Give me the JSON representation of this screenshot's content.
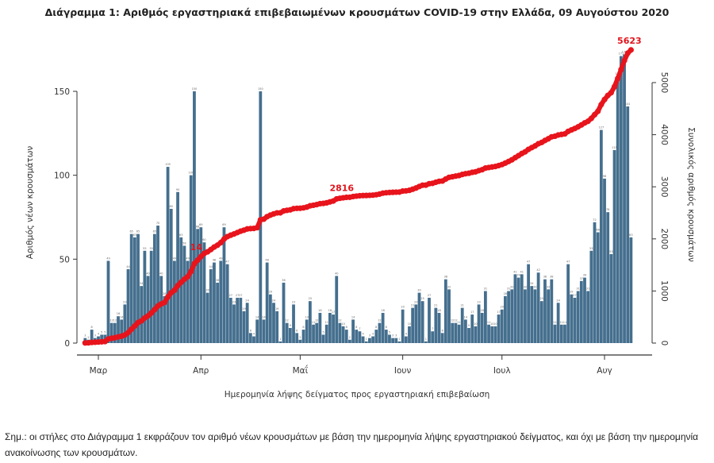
{
  "title": "Διάγραμμα 1: Αριθμός εργαστηριακά επιβεβαιωμένων κρουσμάτων COVID-19 στην Ελλάδα, 09 Αυγούστου 2020",
  "note": "Σημ.: οι στήλες στο Διάγραμμα 1 εκφράζουν τον αριθμό νέων κρουσμάτων με βάση την ημερομηνία λήψης εργαστηριακού δείγματος, και όχι με βάση την ημερομηνία ανακοίνωσης των κρουσμάτων.",
  "chart_data": {
    "type": "bar+line",
    "xlabel": "Ημερομηνία λήψης δείγματος προς εργαστηριακή επιβεβαίωση",
    "ylabel": "Αριθμός νέων κρουσμάτων",
    "ylabel_right": "Συνολικός αριθμός κρουσμάτων",
    "ylim": [
      0,
      175
    ],
    "ylim_right": [
      0,
      5300
    ],
    "y_ticks": [
      "0",
      "50",
      "100",
      "150"
    ],
    "y_ticks_right": [
      "0",
      "1000",
      "2000",
      "3000",
      "4000",
      "5000"
    ],
    "x_ticks": [
      {
        "label": "Μαρ",
        "date": "2020-03-01"
      },
      {
        "label": "Απρ",
        "date": "2020-04-01"
      },
      {
        "label": "Μαΐ",
        "date": "2020-05-01"
      },
      {
        "label": "Ιουν",
        "date": "2020-06-01"
      },
      {
        "label": "Ιουλ",
        "date": "2020-07-01"
      },
      {
        "label": "Αυγ",
        "date": "2020-08-01"
      }
    ],
    "bar_color": "#456f8e",
    "line_color": "#e8141c",
    "grid": false,
    "dates": [
      "2020-02-26",
      "2020-02-27",
      "2020-02-28",
      "2020-02-29",
      "2020-03-01",
      "2020-03-02",
      "2020-03-03",
      "2020-03-04",
      "2020-03-05",
      "2020-03-06",
      "2020-03-07",
      "2020-03-08",
      "2020-03-09",
      "2020-03-10",
      "2020-03-11",
      "2020-03-12",
      "2020-03-13",
      "2020-03-14",
      "2020-03-15",
      "2020-03-16",
      "2020-03-17",
      "2020-03-18",
      "2020-03-19",
      "2020-03-20",
      "2020-03-21",
      "2020-03-22",
      "2020-03-23",
      "2020-03-24",
      "2020-03-25",
      "2020-03-26",
      "2020-03-27",
      "2020-03-28",
      "2020-03-29",
      "2020-03-30",
      "2020-03-31",
      "2020-04-01",
      "2020-04-02",
      "2020-04-03",
      "2020-04-04",
      "2020-04-05",
      "2020-04-06",
      "2020-04-07",
      "2020-04-08",
      "2020-04-09",
      "2020-04-10",
      "2020-04-11",
      "2020-04-12",
      "2020-04-13",
      "2020-04-14",
      "2020-04-15",
      "2020-04-16",
      "2020-04-17",
      "2020-04-18",
      "2020-04-19",
      "2020-04-20",
      "2020-04-21",
      "2020-04-22",
      "2020-04-23",
      "2020-04-24",
      "2020-04-25",
      "2020-04-26",
      "2020-04-27",
      "2020-04-28",
      "2020-04-29",
      "2020-04-30",
      "2020-05-01",
      "2020-05-02",
      "2020-05-03",
      "2020-05-04",
      "2020-05-05",
      "2020-05-06",
      "2020-05-07",
      "2020-05-08",
      "2020-05-09",
      "2020-05-10",
      "2020-05-11",
      "2020-05-12",
      "2020-05-13",
      "2020-05-14",
      "2020-05-15",
      "2020-05-16",
      "2020-05-17",
      "2020-05-18",
      "2020-05-19",
      "2020-05-20",
      "2020-05-21",
      "2020-05-22",
      "2020-05-23",
      "2020-05-24",
      "2020-05-25",
      "2020-05-26",
      "2020-05-27",
      "2020-05-28",
      "2020-05-29",
      "2020-05-30",
      "2020-05-31",
      "2020-06-01",
      "2020-06-02",
      "2020-06-03",
      "2020-06-04",
      "2020-06-05",
      "2020-06-06",
      "2020-06-07",
      "2020-06-08",
      "2020-06-09",
      "2020-06-10",
      "2020-06-11",
      "2020-06-12",
      "2020-06-13",
      "2020-06-14",
      "2020-06-15",
      "2020-06-16",
      "2020-06-17",
      "2020-06-18",
      "2020-06-19",
      "2020-06-20",
      "2020-06-21",
      "2020-06-22",
      "2020-06-23",
      "2020-06-24",
      "2020-06-25",
      "2020-06-26",
      "2020-06-27",
      "2020-06-28",
      "2020-06-29",
      "2020-06-30",
      "2020-07-01",
      "2020-07-02",
      "2020-07-03",
      "2020-07-04",
      "2020-07-05",
      "2020-07-06",
      "2020-07-07",
      "2020-07-08",
      "2020-07-09",
      "2020-07-10",
      "2020-07-11",
      "2020-07-12",
      "2020-07-13",
      "2020-07-14",
      "2020-07-15",
      "2020-07-16",
      "2020-07-17",
      "2020-07-18",
      "2020-07-19",
      "2020-07-20",
      "2020-07-21",
      "2020-07-22",
      "2020-07-23",
      "2020-07-24",
      "2020-07-25",
      "2020-07-26",
      "2020-07-27",
      "2020-07-28",
      "2020-07-29",
      "2020-07-30",
      "2020-07-31",
      "2020-08-01",
      "2020-08-02",
      "2020-08-03",
      "2020-08-04",
      "2020-08-05",
      "2020-08-06",
      "2020-08-07",
      "2020-08-08",
      "2020-08-09"
    ],
    "new_cases": [
      3,
      2,
      8,
      3,
      4,
      5,
      5,
      49,
      12,
      12,
      16,
      14,
      23,
      44,
      65,
      63,
      65,
      34,
      55,
      40,
      55,
      65,
      70,
      40,
      28,
      105,
      80,
      49,
      90,
      63,
      58,
      49,
      100,
      150,
      68,
      69,
      60,
      30,
      44,
      48,
      36,
      49,
      69,
      47,
      27,
      23,
      27,
      27,
      19,
      24,
      6,
      4,
      14,
      150,
      14,
      48,
      29,
      24,
      19,
      1,
      36,
      12,
      9,
      23,
      6,
      2,
      8,
      14,
      25,
      11,
      12,
      18,
      5,
      11,
      18,
      17,
      40,
      12,
      10,
      8,
      2,
      14,
      8,
      7,
      4,
      1,
      3,
      4,
      8,
      12,
      18,
      8,
      5,
      3,
      3,
      1,
      20,
      4,
      10,
      21,
      23,
      30,
      25,
      1,
      27,
      7,
      21,
      18,
      6,
      38,
      32,
      12,
      12,
      11,
      21,
      14,
      9,
      17,
      10,
      23,
      18,
      31,
      11,
      10,
      10,
      17,
      20,
      28,
      31,
      32,
      41,
      39,
      41,
      32,
      47,
      34,
      32,
      42,
      25,
      38,
      32,
      38,
      11,
      24,
      11,
      11,
      47,
      29,
      27,
      31,
      37,
      39,
      31,
      55,
      72,
      66,
      127,
      98,
      78,
      53,
      115,
      159,
      171,
      172,
      141,
      63
    ],
    "annotations": [
      {
        "label": "14",
        "date": "2020-04-01"
      },
      {
        "label": "2816",
        "date": "2020-05-15"
      },
      {
        "label": "5623",
        "date": "2020-08-09"
      }
    ]
  }
}
